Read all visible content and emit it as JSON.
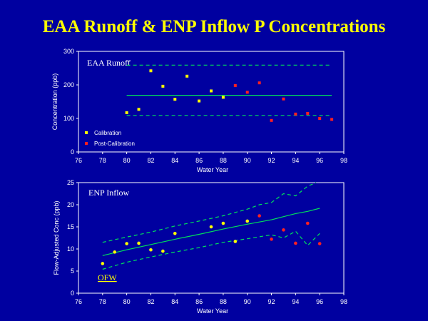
{
  "slide": {
    "title": "EAA Runoff & ENP Inflow P Concentrations"
  },
  "colors": {
    "background": "#0000a0",
    "title": "#ffff00",
    "axes": "#ffffff",
    "trend": "#00e05a",
    "calibration": "#ffff00",
    "post_calibration": "#ff2020"
  },
  "chart_data": [
    {
      "type": "scatter",
      "title": "EAA Runoff",
      "xlabel": "Water Year",
      "ylabel": "Concentration (ppb)",
      "xlim": [
        76,
        98
      ],
      "ylim": [
        0,
        300
      ],
      "xticks": [
        76,
        78,
        80,
        82,
        84,
        86,
        88,
        90,
        92,
        94,
        96,
        98
      ],
      "yticks": [
        0,
        100,
        200,
        300
      ],
      "legend_position": "bottom-left",
      "series": [
        {
          "name": "Calibration",
          "kind": "points",
          "color": "#ffff00",
          "x": [
            80,
            81,
            82,
            83,
            84,
            85,
            86,
            87,
            88
          ],
          "y": [
            117,
            127,
            242,
            196,
            157,
            226,
            152,
            182,
            163
          ]
        },
        {
          "name": "Post-Calibration",
          "kind": "points",
          "color": "#ff2020",
          "x": [
            89,
            90,
            91,
            92,
            93,
            94,
            95,
            96,
            97
          ],
          "y": [
            198,
            178,
            206,
            94,
            158,
            113,
            115,
            100,
            97
          ]
        },
        {
          "kind": "line",
          "style": "solid",
          "color": "#00e05a",
          "x": [
            80,
            97
          ],
          "y": [
            169,
            169
          ]
        },
        {
          "kind": "line",
          "style": "dashed",
          "color": "#00e05a",
          "x": [
            80,
            97
          ],
          "y": [
            259,
            259
          ]
        },
        {
          "kind": "line",
          "style": "dashed",
          "color": "#00e05a",
          "x": [
            80,
            97
          ],
          "y": [
            109,
            109
          ]
        }
      ]
    },
    {
      "type": "scatter",
      "title": "ENP Inflow",
      "xlabel": "Water Year",
      "ylabel": "Flow-Adjusted Conc (ppb)",
      "xlim": [
        76,
        98
      ],
      "ylim": [
        0,
        25
      ],
      "xticks": [
        76,
        78,
        80,
        82,
        84,
        86,
        88,
        90,
        92,
        94,
        96,
        98
      ],
      "yticks": [
        0,
        5,
        10,
        15,
        20,
        25
      ],
      "annotation": "OFW",
      "series": [
        {
          "kind": "points",
          "color": "#ffff00",
          "x": [
            78,
            79,
            80,
            81,
            82,
            83,
            84,
            87,
            88,
            89,
            90
          ],
          "y": [
            6.7,
            9.3,
            11.2,
            11.3,
            9.8,
            9.5,
            13.5,
            15,
            15.8,
            11.7,
            16.3
          ]
        },
        {
          "kind": "points",
          "color": "#ff2020",
          "x": [
            91,
            92,
            93,
            94,
            95,
            96
          ],
          "y": [
            17.5,
            12.2,
            14.3,
            11.3,
            15.8,
            11.2
          ]
        },
        {
          "kind": "line",
          "style": "solid",
          "color": "#00e05a",
          "x": [
            78,
            80,
            82,
            84,
            86,
            88,
            90,
            92,
            93,
            94,
            95,
            96
          ],
          "y": [
            8.5,
            9.8,
            11,
            12.2,
            13.3,
            14.5,
            15.6,
            16.6,
            17.3,
            18,
            18.5,
            19.2
          ]
        },
        {
          "kind": "line",
          "style": "dashed",
          "color": "#00e05a",
          "x": [
            78,
            80,
            82,
            84,
            86,
            88,
            90,
            91,
            92,
            93,
            94,
            95,
            95.7
          ],
          "y": [
            11.5,
            12.7,
            13.8,
            15.2,
            16.3,
            17.5,
            19,
            20,
            20.5,
            22.5,
            22,
            24.2,
            25
          ]
        },
        {
          "kind": "line",
          "style": "dashed",
          "color": "#00e05a",
          "x": [
            78,
            80,
            82,
            84,
            86,
            88,
            90,
            92,
            93,
            94,
            95,
            96
          ],
          "y": [
            5.4,
            7,
            8.2,
            9.3,
            10.3,
            11.5,
            12.3,
            13.2,
            12.5,
            14,
            10.8,
            13.5
          ]
        }
      ]
    }
  ]
}
